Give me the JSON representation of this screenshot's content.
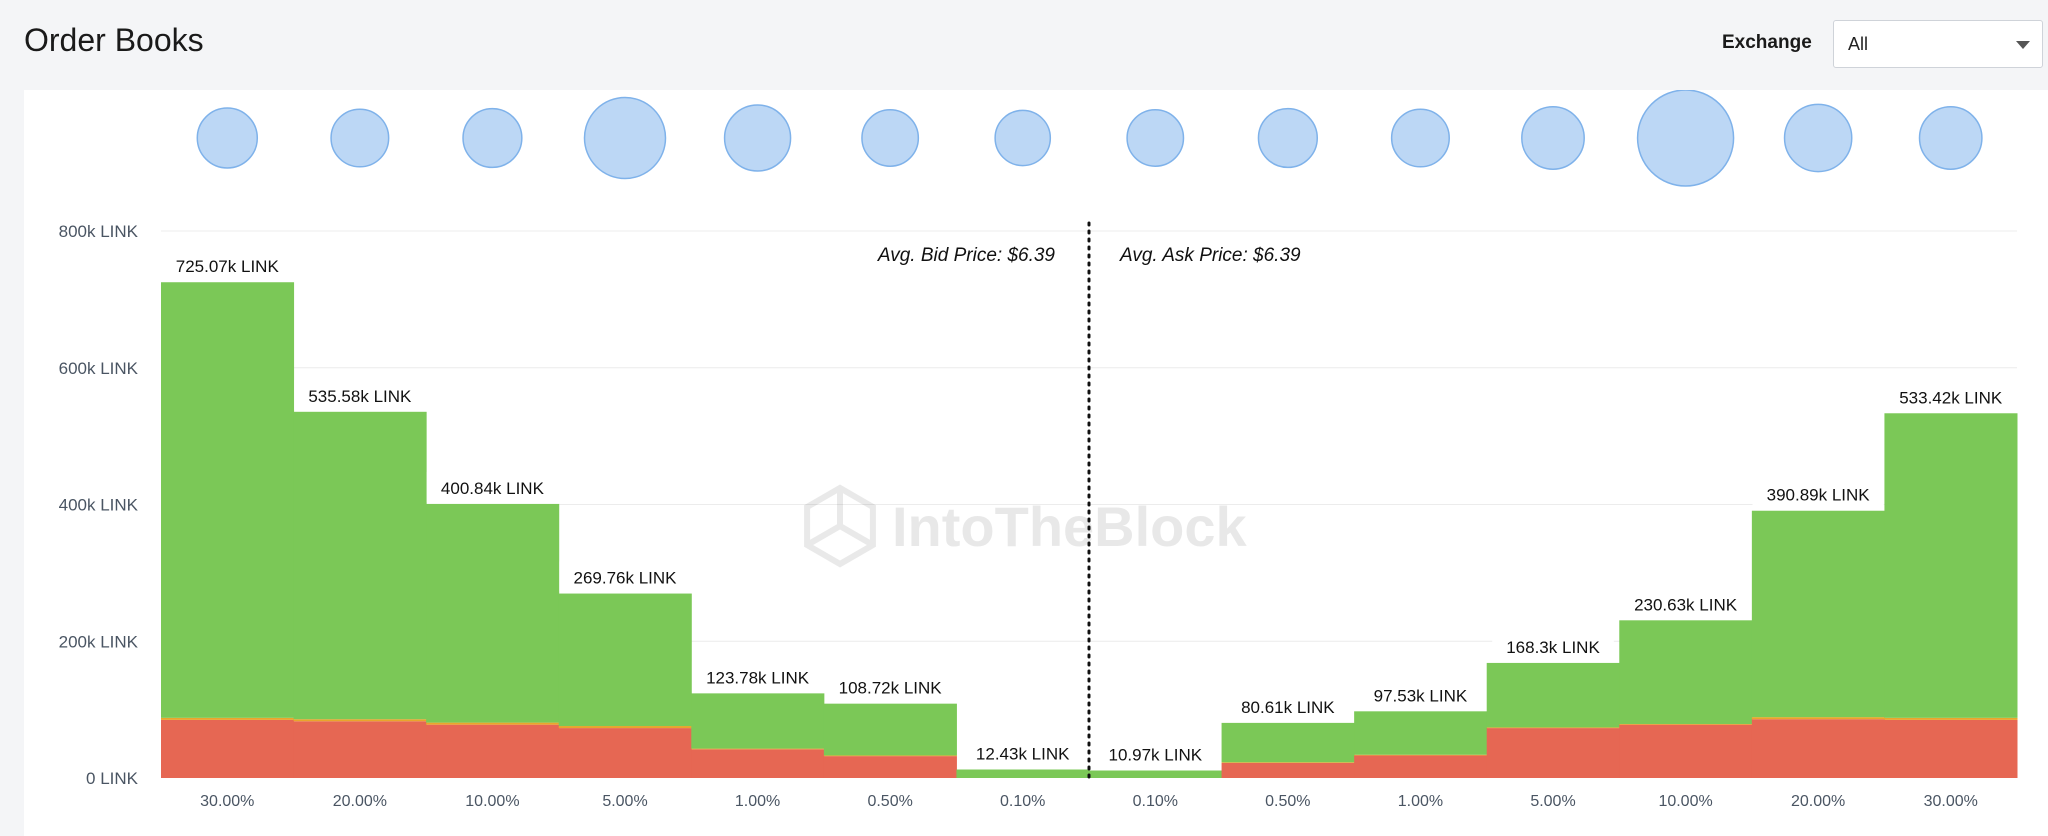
{
  "header": {
    "title": "Order Books",
    "exchange_label": "Exchange",
    "exchange_value": "All"
  },
  "chart_data": {
    "type": "bar",
    "stacked": true,
    "categories": [
      "30.00%",
      "20.00%",
      "10.00%",
      "5.00%",
      "1.00%",
      "0.50%",
      "0.10%",
      "0.10%",
      "0.50%",
      "1.00%",
      "5.00%",
      "10.00%",
      "20.00%",
      "30.00%"
    ],
    "totals": [
      725.07,
      535.58,
      400.84,
      269.76,
      123.78,
      108.72,
      12.43,
      10.97,
      80.61,
      97.53,
      168.3,
      230.63,
      390.89,
      533.42
    ],
    "data_labels": [
      "725.07k LINK",
      "535.58k LINK",
      "400.84k LINK",
      "269.76k LINK",
      "123.78k LINK",
      "108.72k LINK",
      "12.43k LINK",
      "10.97k LINK",
      "80.61k LINK",
      "97.53k LINK",
      "168.3k LINK",
      "230.63k LINK",
      "390.89k LINK",
      "533.42k LINK"
    ],
    "series": [
      {
        "values": [
          85,
          83,
          78,
          73,
          42,
          32,
          0,
          0,
          22,
          33,
          73,
          78,
          86,
          85
        ],
        "color": "#e66753"
      },
      {
        "values": [
          3,
          3,
          3,
          3,
          1,
          1,
          0,
          0,
          1,
          1,
          1,
          1,
          3,
          3
        ],
        "color": "#e9a52b"
      },
      {
        "values": [
          637.07,
          449.58,
          319.84,
          193.76,
          80.78,
          75.72,
          12.43,
          10.97,
          57.61,
          63.53,
          94.3,
          151.63,
          301.89,
          445.42
        ],
        "color": "#7bc857"
      }
    ],
    "bubble_values": [
      40,
      36,
      38,
      75,
      50,
      34,
      32,
      34,
      38,
      36,
      44,
      100,
      52,
      44
    ],
    "bubble_color": "#bcd7f5",
    "bubble_stroke": "#7fb2ea",
    "yticks": [
      0,
      200,
      400,
      600,
      800
    ],
    "ytick_labels": [
      "0 LINK",
      "200k LINK",
      "400k LINK",
      "600k LINK",
      "800k LINK"
    ],
    "ylim": [
      0,
      800
    ],
    "grid": true,
    "annotations": {
      "bid": "Avg. Bid Price: $6.39",
      "ask": "Avg. Ask Price: $6.39"
    },
    "watermark": "IntoTheBlock"
  }
}
